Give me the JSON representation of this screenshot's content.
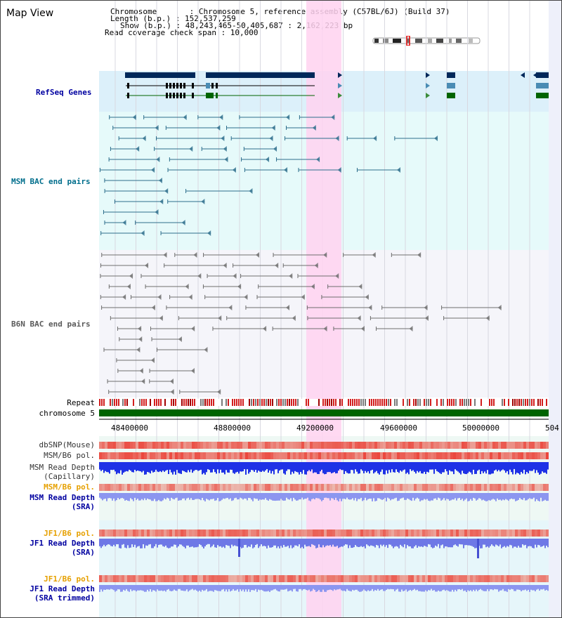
{
  "header": {
    "title": "Map View",
    "lines": [
      "Chromosome       : Chromosome 5, reference assembly (C57BL/6J) (Build 37)",
      "Length (b.p.) : 152,537,259",
      "Show (b.p.) : 48,243,465-50,405,687 : 2,162,223 bp",
      "Read coverage check span : 10,000"
    ]
  },
  "tracks": {
    "refseq": "RefSeq Genes",
    "msm_bac": "MSM BAC end pairs",
    "b6n_bac": "B6N BAC end pairs",
    "repeat": "Repeat",
    "chromosome": "chromosome 5",
    "dbsnp": "dbSNP(Mouse)",
    "msm_b6_pol_1": "MSM/B6 pol.",
    "msm_read_depth_cap_1": "MSM Read Depth",
    "msm_read_depth_cap_2": "(Capillary)",
    "msm_b6_pol_2": "MSM/B6 pol.",
    "msm_read_depth_sra_1": "MSM Read Depth",
    "msm_read_depth_sra_2": "(SRA)",
    "jf1_b6_pol_1": "JF1/B6 pol.",
    "jf1_read_depth_sra_1": "JF1 Read Depth",
    "jf1_read_depth_sra_2": "(SRA)",
    "jf1_b6_pol_2": "JF1/B6 pol.",
    "jf1_read_depth_trim_1": "JF1 Read Depth",
    "jf1_read_depth_trim_2": "(SRA trimmed)"
  },
  "axis": {
    "ticks": [
      "48400000",
      "48800000",
      "49200000",
      "49600000",
      "50000000",
      "504"
    ]
  },
  "colors": {
    "refseq_bg": "#dcf0fa",
    "msm_bg": "#e6fafa",
    "b6n_bg": "#f5f5fa",
    "highlight": "#ffd2f0",
    "navy_label": "#0000a0",
    "teal_label": "#006e8c",
    "gray_label": "#5a5a5a",
    "orange_label": "#e6a000",
    "chromosome_green": "#006400"
  }
}
